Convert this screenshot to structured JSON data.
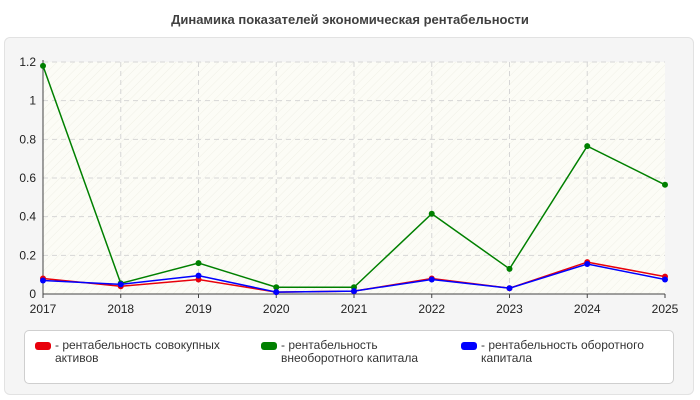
{
  "chart_data": {
    "type": "line",
    "title": "Динамика показателей экономическая рентабельности",
    "xlabel": "",
    "ylabel": "",
    "categories": [
      "2017",
      "2018",
      "2019",
      "2020",
      "2021",
      "2022",
      "2023",
      "2024",
      "2025"
    ],
    "ylim": [
      0,
      1.2
    ],
    "yticks": [
      "0",
      "0.2",
      "0.4",
      "0.6",
      "0.8",
      "1",
      "1.2"
    ],
    "grid": true,
    "legend_position": "bottom",
    "series": [
      {
        "name": "рентабельность совокупных активов",
        "color": "#e8000b",
        "values": [
          0.08,
          0.04,
          0.075,
          0.01,
          0.015,
          0.08,
          0.03,
          0.165,
          0.09
        ]
      },
      {
        "name": "рентабельность внеоборотного капитала",
        "color": "#008000",
        "values": [
          1.18,
          0.055,
          0.16,
          0.035,
          0.035,
          0.415,
          0.13,
          0.765,
          0.565
        ]
      },
      {
        "name": "рентабельность оборотного капитала",
        "color": "#0000ff",
        "values": [
          0.07,
          0.05,
          0.095,
          0.01,
          0.015,
          0.075,
          0.03,
          0.155,
          0.075
        ]
      }
    ]
  },
  "legend": {
    "items": [
      {
        "label": "- рентабельность совокупных активов",
        "color": "#e8000b"
      },
      {
        "label": "- рентабельность внеоборотного капитала",
        "color": "#008000"
      },
      {
        "label": "- рентабельность оборотного капитала",
        "color": "#0000ff"
      }
    ]
  }
}
